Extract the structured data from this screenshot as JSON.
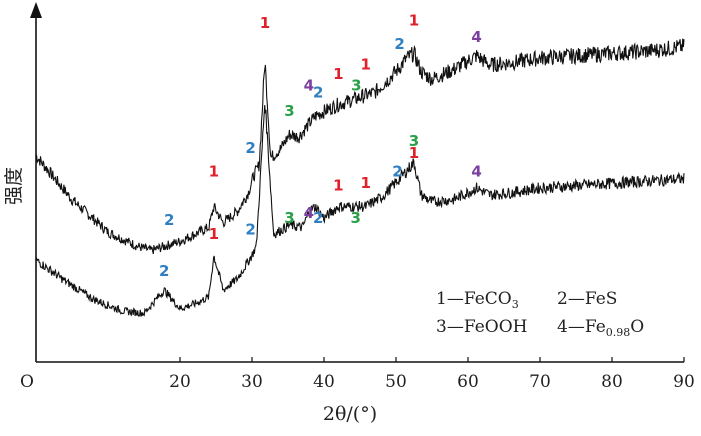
{
  "chart_data": {
    "type": "line",
    "xlabel": "2θ/(°)",
    "ylabel": "强度",
    "origin_label": "O",
    "xlim": [
      0,
      90
    ],
    "x_ticks": [
      20,
      30,
      40,
      50,
      60,
      70,
      80,
      90
    ],
    "grid": false,
    "legend_position": "bottom-right",
    "legend": [
      {
        "num": "1",
        "name": "FeCO",
        "sub": "3"
      },
      {
        "num": "2",
        "name": "FeS",
        "sub": ""
      },
      {
        "num": "3",
        "name": "FeOOH",
        "sub": ""
      },
      {
        "num": "4",
        "name": "Fe",
        "sub": "0.98",
        "tail": "O"
      }
    ],
    "label_colors": {
      "1": "#e0202a",
      "2": "#2f7fc1",
      "3": "#2aa048",
      "4": "#7b3fa0"
    },
    "series": [
      {
        "x": [
          0,
          5,
          10,
          14,
          16,
          18,
          20,
          22,
          24,
          24.7,
          26,
          28,
          29.5,
          30.2,
          31,
          31.8,
          32.6,
          34,
          35.2,
          36.5,
          38,
          38.8,
          40,
          42,
          44,
          45.8,
          47,
          49,
          50.5,
          51.5,
          52.5,
          53.5,
          55,
          58,
          61.2,
          63,
          66,
          70,
          75,
          80,
          85,
          90
        ],
        "y": [
          178,
          140,
          112,
          100,
          96,
          100,
          104,
          110,
          116,
          134,
          120,
          130,
          146,
          160,
          170,
          260,
          176,
          184,
          196,
          194,
          206,
          212,
          216,
          222,
          226,
          230,
          232,
          244,
          254,
          262,
          266,
          250,
          244,
          252,
          264,
          256,
          258,
          262,
          264,
          266,
          268,
          272
        ]
      },
      {
        "x": [
          0,
          4,
          8,
          12,
          15,
          17.8,
          20,
          22,
          24,
          24.7,
          26,
          28,
          30,
          30.6,
          31.8,
          33,
          35.2,
          37,
          38,
          38.8,
          40,
          42,
          44,
          45.8,
          48,
          50.5,
          52.5,
          53.5,
          55,
          58,
          61.2,
          63,
          66,
          70,
          75,
          80,
          85,
          90
        ],
        "y": [
          88,
          70,
          54,
          44,
          42,
          62,
          46,
          50,
          56,
          92,
          62,
          72,
          92,
          100,
          226,
          110,
          118,
          116,
          130,
          134,
          124,
          134,
          134,
          134,
          142,
          158,
          172,
          144,
          138,
          140,
          150,
          144,
          146,
          150,
          152,
          154,
          156,
          158
        ]
      }
    ],
    "peak_labels": [
      {
        "text": "1",
        "x": 31.8,
        "y": 288,
        "type": "1"
      },
      {
        "text": "1",
        "x": 52.5,
        "y": 290,
        "type": "1"
      },
      {
        "text": "2",
        "x": 50.5,
        "y": 270,
        "type": "2"
      },
      {
        "text": "4",
        "x": 61.2,
        "y": 276,
        "type": "4"
      },
      {
        "text": "1",
        "x": 45.8,
        "y": 252,
        "type": "1"
      },
      {
        "text": "3",
        "x": 44.5,
        "y": 234,
        "type": "3"
      },
      {
        "text": "1",
        "x": 42,
        "y": 244,
        "type": "1"
      },
      {
        "text": "4",
        "x": 37.9,
        "y": 234,
        "type": "4"
      },
      {
        "text": "2",
        "x": 39.2,
        "y": 228,
        "type": "2"
      },
      {
        "text": "3",
        "x": 35.2,
        "y": 212,
        "type": "3"
      },
      {
        "text": "2",
        "x": 29.8,
        "y": 180,
        "type": "2"
      },
      {
        "text": "1",
        "x": 24.7,
        "y": 160,
        "type": "1"
      },
      {
        "text": "2",
        "x": 18.5,
        "y": 118,
        "type": "2"
      },
      {
        "text": "3",
        "x": 52.5,
        "y": 186,
        "type": "3"
      },
      {
        "text": "1",
        "x": 52.5,
        "y": 176,
        "type": "1"
      },
      {
        "text": "2",
        "x": 50.2,
        "y": 160,
        "type": "2"
      },
      {
        "text": "4",
        "x": 61.2,
        "y": 160,
        "type": "4"
      },
      {
        "text": "1",
        "x": 45.8,
        "y": 150,
        "type": "1"
      },
      {
        "text": "3",
        "x": 44.4,
        "y": 120,
        "type": "3"
      },
      {
        "text": "1",
        "x": 42,
        "y": 148,
        "type": "1"
      },
      {
        "text": "4",
        "x": 37.9,
        "y": 124,
        "type": "4"
      },
      {
        "text": "2",
        "x": 39.2,
        "y": 120,
        "type": "2"
      },
      {
        "text": "3",
        "x": 35.2,
        "y": 120,
        "type": "3"
      },
      {
        "text": "2",
        "x": 29.8,
        "y": 110,
        "type": "2"
      },
      {
        "text": "1",
        "x": 24.7,
        "y": 106,
        "type": "1"
      },
      {
        "text": "2",
        "x": 17.8,
        "y": 74,
        "type": "2"
      }
    ]
  }
}
